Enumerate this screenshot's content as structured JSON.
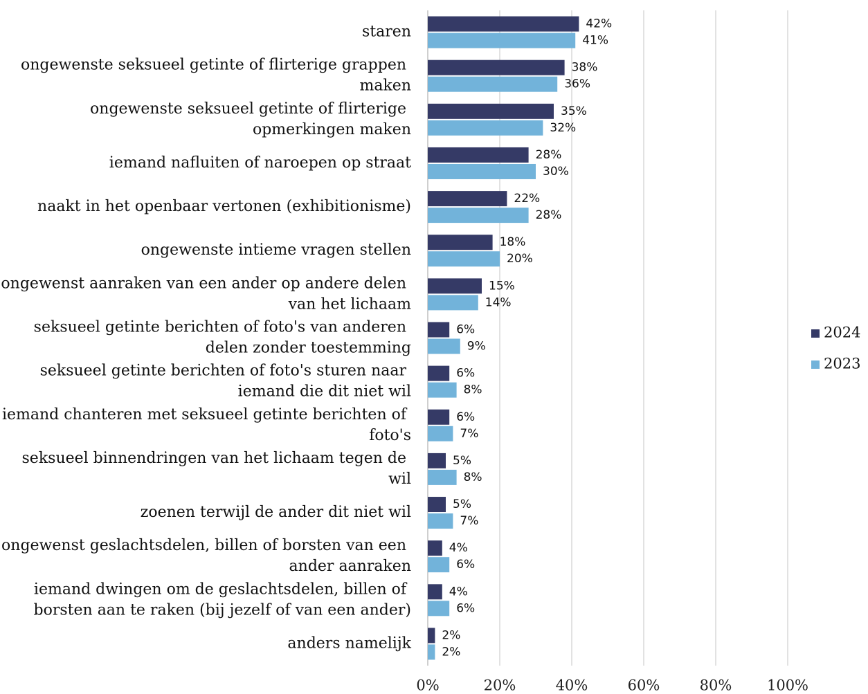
{
  "chart_data": {
    "type": "bar",
    "orientation": "horizontal",
    "categories": [
      "staren",
      "ongewenste seksueel getinte of flirterige grappen maken",
      "ongewenste seksueel getinte of flirterige opmerkingen maken",
      "iemand nafluiten of naroepen op straat",
      "naakt in het openbaar vertonen (exhibitionisme)",
      "ongewenste intieme vragen stellen",
      "ongewenst aanraken van een ander op andere delen van het lichaam",
      "seksueel getinte berichten of foto's van anderen delen zonder toestemming",
      "seksueel getinte berichten  of foto's sturen naar iemand die dit niet wil",
      "iemand chanteren met seksueel getinte berichten of foto's",
      "seksueel binnendringen van het lichaam tegen de wil",
      "zoenen terwijl de ander dit niet wil",
      "ongewenst geslachtsdelen, billen of borsten van een ander aanraken",
      "iemand dwingen om de geslachtsdelen, billen of borsten aan te raken (bij jezelf of van een ander)",
      "anders namelijk"
    ],
    "series": [
      {
        "name": "2024",
        "color": "#353a66",
        "values": [
          42,
          38,
          35,
          28,
          22,
          18,
          15,
          6,
          6,
          6,
          5,
          5,
          4,
          4,
          2
        ],
        "value_labels": [
          "42%",
          "38%",
          "35%",
          "28%",
          "22%",
          "18%",
          "15%",
          "6%",
          "6%",
          "6%",
          "5%",
          "5%",
          "4%",
          "4%",
          "2%"
        ]
      },
      {
        "name": "2023",
        "color": "#72b3da",
        "values": [
          41,
          36,
          32,
          30,
          28,
          20,
          14,
          9,
          8,
          7,
          8,
          7,
          6,
          6,
          2
        ],
        "value_labels": [
          "41%",
          "36%",
          "32%",
          "30%",
          "28%",
          "20%",
          "14%",
          "9%",
          "8%",
          "7%",
          "8%",
          "7%",
          "6%",
          "6%",
          "2%"
        ]
      }
    ],
    "xlim": [
      0,
      100
    ],
    "xticks": [
      {
        "value": 0,
        "label": "0%"
      },
      {
        "value": 20,
        "label": "20%"
      },
      {
        "value": 40,
        "label": "40%"
      },
      {
        "value": 60,
        "label": "60%"
      },
      {
        "value": 80,
        "label": "80%"
      },
      {
        "value": 100,
        "label": "100%"
      }
    ],
    "grid": true,
    "legend": "right"
  }
}
